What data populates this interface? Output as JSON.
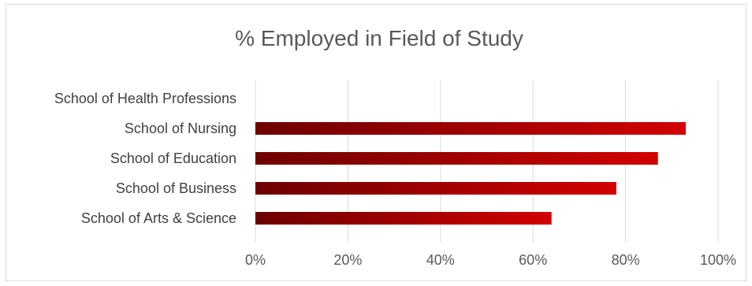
{
  "chart_data": {
    "type": "bar",
    "orientation": "horizontal",
    "title": "% Employed in Field of Study",
    "categories": [
      "School of Health Professions",
      "School of Nursing",
      "School of Education",
      "School of Business",
      "School of Arts & Science"
    ],
    "values": [
      null,
      93,
      87,
      78,
      64
    ],
    "xlim": [
      0,
      100
    ],
    "xticks": [
      "0%",
      "20%",
      "40%",
      "60%",
      "80%",
      "100%"
    ],
    "grid": true,
    "legend": "none",
    "colors": {
      "bar_start": "#6e0000",
      "bar_end": "#d20000",
      "gridline": "#d9d9d9",
      "border": "#d9d9d9"
    }
  }
}
